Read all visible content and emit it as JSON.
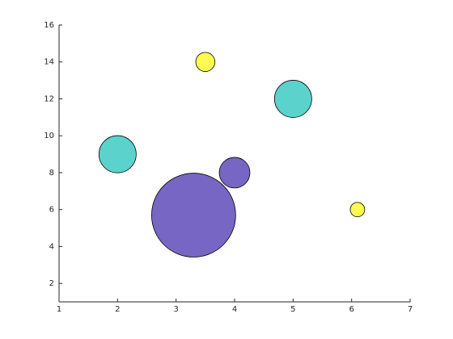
{
  "chart_data": {
    "type": "bubble",
    "x": [
      2,
      3.5,
      5,
      4,
      3.3,
      6.1
    ],
    "values": [
      9,
      14,
      12,
      8,
      5.7,
      6
    ],
    "sizes": [
      5.3,
      1.4,
      5.3,
      3.6,
      27,
      0.8
    ],
    "colors": [
      "#5bd2cc",
      "#fbfb51",
      "#5bd2cc",
      "#7866c4",
      "#7866c4",
      "#fbfb51"
    ],
    "xlim": [
      1,
      7
    ],
    "xticks": [
      1,
      2,
      3,
      4,
      5,
      6,
      7
    ],
    "ylim": [
      1,
      16
    ],
    "yticks": [
      2,
      4,
      6,
      8,
      10,
      12,
      14,
      16
    ]
  }
}
